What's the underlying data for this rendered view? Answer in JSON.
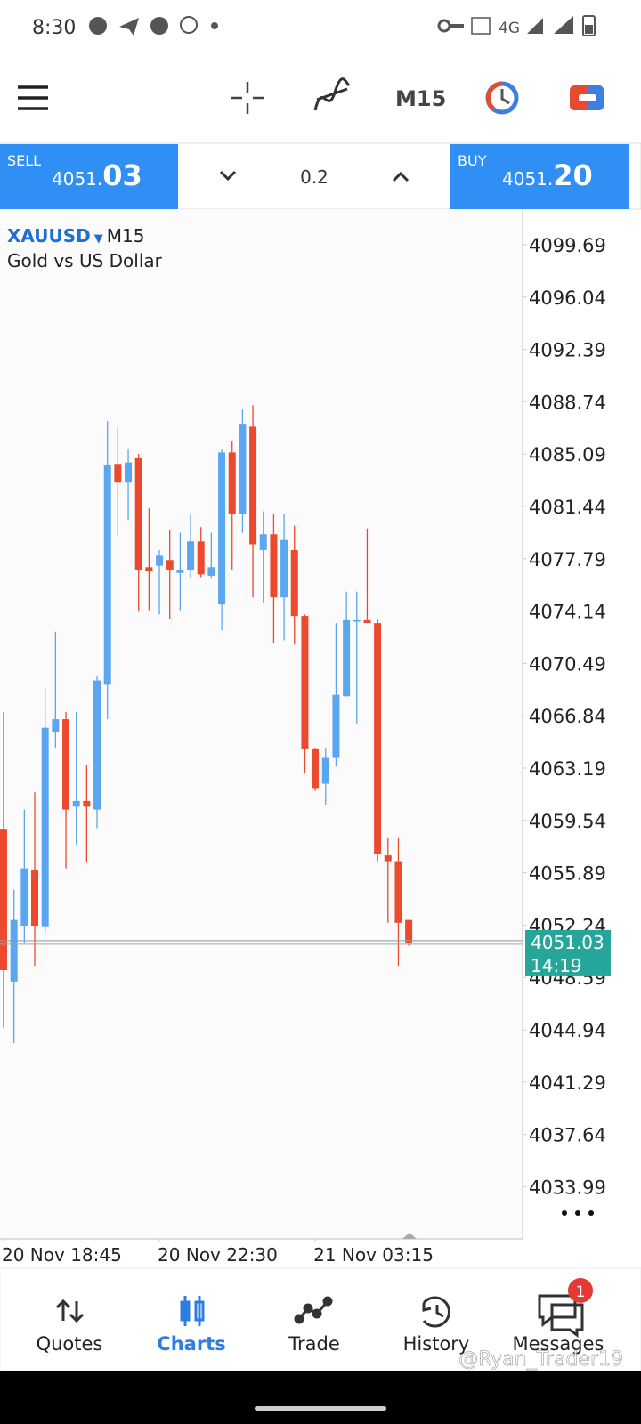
{
  "status_bar": {
    "time": "8:30",
    "network": "4G"
  },
  "toolbar": {
    "timeframe": "M15"
  },
  "trade_panel": {
    "sell_label": "SELL",
    "sell_price_main": "4051.",
    "sell_price_pips": "03",
    "volume": "0.2",
    "buy_label": "BUY",
    "buy_price_main": "4051.",
    "buy_price_pips": "20"
  },
  "chart_data": {
    "type": "candlestick",
    "symbol": "XAUUSD",
    "timeframe": "M15",
    "subtitle": "Gold vs US Dollar",
    "categories": [
      "20 Nov 18:45",
      null,
      null,
      null,
      null,
      null,
      null,
      null,
      null,
      null,
      null,
      null,
      null,
      null,
      null,
      "20 Nov 22:30",
      null,
      null,
      null,
      null,
      null,
      null,
      null,
      null,
      null,
      null,
      null,
      null,
      null,
      null,
      "21 Nov 03:15",
      null,
      null,
      null,
      null,
      null,
      null,
      null,
      null,
      null
    ],
    "open": [
      4058.9,
      4048.3,
      4052.2,
      4056.1,
      4052.1,
      4065.7,
      4066.6,
      4060.5,
      4060.9,
      4060.3,
      4069.0,
      4084.4,
      4083.1,
      4084.8,
      4077.2,
      4077.3,
      4077.7,
      4076.8,
      4077.0,
      4079.0,
      4076.6,
      4074.6,
      4085.2,
      4080.9,
      4087.0,
      4078.4,
      4079.5,
      4075.1,
      4078.4,
      4073.8,
      4064.5,
      4062.1,
      4063.9,
      4068.2,
      4073.4,
      4073.5,
      4073.3,
      4057.1,
      4056.7,
      4052.6
    ],
    "high": [
      4067.1,
      4054.7,
      4060.3,
      4061.5,
      4068.7,
      4072.7,
      4067.1,
      4067.1,
      4063.4,
      4069.6,
      4087.4,
      4087.0,
      4085.4,
      4085.1,
      4081.3,
      4078.4,
      4079.8,
      4079.6,
      4080.9,
      4080.0,
      4079.6,
      4085.4,
      4086.0,
      4088.2,
      4088.5,
      4081.1,
      4080.9,
      4080.9,
      4080.1,
      4073.9,
      4064.6,
      4064.6,
      4073.3,
      4075.5,
      4075.5,
      4079.9,
      4073.6,
      4058.3,
      4058.3,
      4052.6
    ],
    "low": [
      4045.1,
      4044.0,
      4051.0,
      4049.4,
      4051.6,
      4064.6,
      4056.2,
      4057.8,
      4056.6,
      4059.0,
      4066.6,
      4079.4,
      4080.5,
      4074.1,
      4074.2,
      4073.9,
      4073.6,
      4074.2,
      4076.4,
      4076.5,
      4076.4,
      4072.8,
      4077.0,
      4079.6,
      4075.1,
      4074.7,
      4071.9,
      4072.1,
      4071.8,
      4062.8,
      4061.6,
      4060.6,
      4063.3,
      4068.2,
      4066.3,
      4073.5,
      4056.7,
      4052.4,
      4049.4,
      4050.8
    ],
    "close": [
      4049.1,
      4052.6,
      4056.2,
      4052.2,
      4066.0,
      4066.6,
      4060.3,
      4060.9,
      4060.5,
      4069.3,
      4084.3,
      4083.1,
      4084.5,
      4077.0,
      4076.9,
      4078.0,
      4077.0,
      4077.0,
      4079.0,
      4076.7,
      4077.2,
      4085.2,
      4080.9,
      4087.2,
      4078.8,
      4079.5,
      4075.1,
      4079.1,
      4073.8,
      4064.5,
      4061.8,
      4063.9,
      4068.3,
      4073.5,
      4073.5,
      4073.3,
      4057.2,
      4056.7,
      4052.4,
      4051.03
    ],
    "up_color": "#5ba6f0",
    "down_color": "#ec4a2f",
    "ylim": [
      4030.48,
      4102.17
    ],
    "yticks": [
      4099.69,
      4096.04,
      4092.39,
      4088.74,
      4085.09,
      4081.44,
      4077.79,
      4074.14,
      4070.49,
      4066.84,
      4063.19,
      4059.54,
      4055.89,
      4052.24,
      4048.59,
      4044.94,
      4041.29,
      4037.64,
      4033.99
    ],
    "current_price": 4051.03,
    "current_time_label": "14:19",
    "price_tag_color": "#26a69a"
  },
  "bottom_nav": {
    "items": [
      "Quotes",
      "Charts",
      "Trade",
      "History",
      "Messages"
    ],
    "active": 1,
    "badge": "1"
  },
  "watermark": "@Ryan_Trader19"
}
